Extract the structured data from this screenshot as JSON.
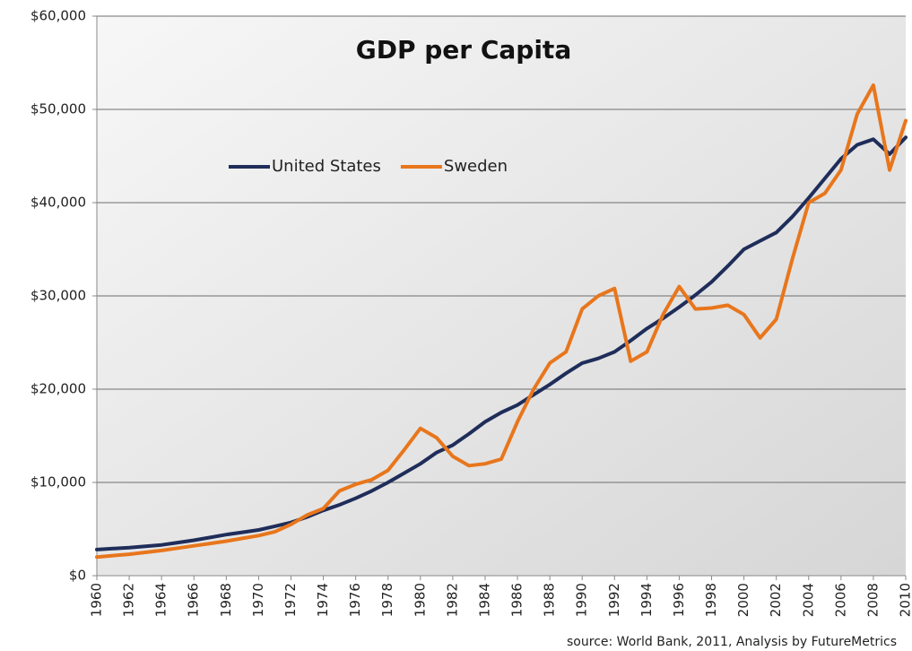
{
  "chart_data": {
    "type": "line",
    "title": "GDP per Capita",
    "source": "source: World Bank, 2011, Analysis by FutureMetrics",
    "x": [
      1960,
      1961,
      1962,
      1963,
      1964,
      1965,
      1966,
      1967,
      1968,
      1969,
      1970,
      1971,
      1972,
      1973,
      1974,
      1975,
      1976,
      1977,
      1978,
      1979,
      1980,
      1981,
      1982,
      1983,
      1984,
      1985,
      1986,
      1987,
      1988,
      1989,
      1990,
      1991,
      1992,
      1993,
      1994,
      1995,
      1996,
      1997,
      1998,
      1999,
      2000,
      2001,
      2002,
      2003,
      2004,
      2005,
      2006,
      2007,
      2008,
      2009,
      2010
    ],
    "series": [
      {
        "name": "United States",
        "color": "#1f2d5a",
        "values": [
          2800,
          2900,
          3000,
          3150,
          3300,
          3550,
          3800,
          4100,
          4400,
          4650,
          4900,
          5300,
          5700,
          6300,
          7000,
          7600,
          8300,
          9100,
          10000,
          11000,
          12000,
          13200,
          14000,
          15200,
          16500,
          17500,
          18300,
          19400,
          20500,
          21700,
          22800,
          23300,
          24000,
          25200,
          26500,
          27600,
          28800,
          30100,
          31500,
          33200,
          35000,
          35900,
          36800,
          38500,
          40500,
          42600,
          44700,
          46200,
          46800,
          45200,
          47000
        ]
      },
      {
        "name": "Sweden",
        "color": "#e8761c",
        "values": [
          2000,
          2150,
          2300,
          2500,
          2700,
          2950,
          3200,
          3450,
          3700,
          4000,
          4300,
          4700,
          5500,
          6500,
          7200,
          9100,
          9800,
          10300,
          11300,
          13500,
          15800,
          14800,
          12800,
          11800,
          12000,
          12500,
          16500,
          20000,
          22800,
          24000,
          28600,
          30000,
          30800,
          23000,
          24000,
          28000,
          31000,
          28600,
          28700,
          29000,
          28000,
          25500,
          27500,
          34000,
          40000,
          41000,
          43500,
          49500,
          52600,
          43500,
          48800
        ]
      }
    ],
    "xlim": [
      1960,
      2010
    ],
    "xticks": [
      1960,
      1962,
      1964,
      1966,
      1968,
      1970,
      1972,
      1974,
      1976,
      1978,
      1980,
      1982,
      1984,
      1986,
      1988,
      1990,
      1992,
      1994,
      1996,
      1998,
      2000,
      2002,
      2004,
      2006,
      2008,
      2010
    ],
    "ylim": [
      0,
      60000
    ],
    "yticks": [
      {
        "value": 0,
        "label": "$0"
      },
      {
        "value": 10000,
        "label": "$10,000"
      },
      {
        "value": 20000,
        "label": "$20,000"
      },
      {
        "value": 30000,
        "label": "$30,000"
      },
      {
        "value": 40000,
        "label": "$40,000"
      },
      {
        "value": 50000,
        "label": "$50,000"
      },
      {
        "value": 60000,
        "label": "$60,000"
      }
    ],
    "grid": true
  }
}
